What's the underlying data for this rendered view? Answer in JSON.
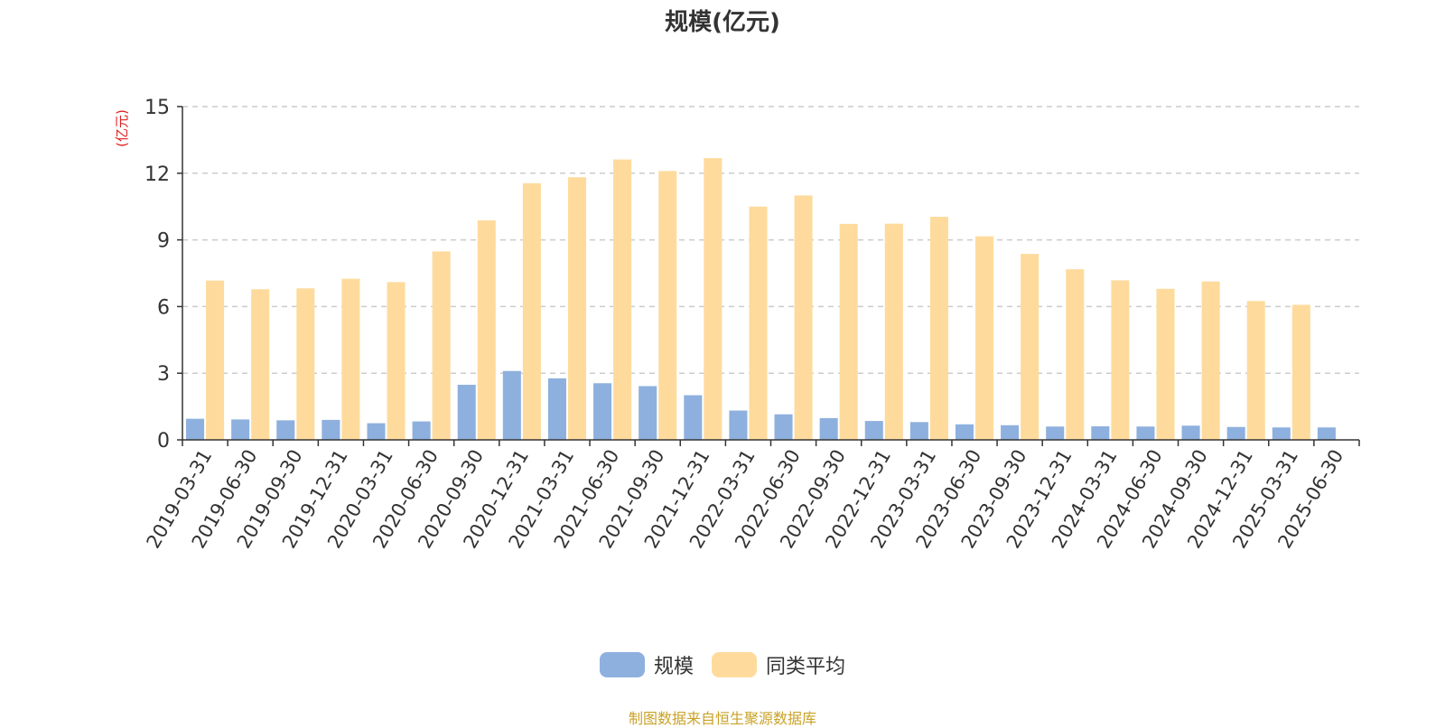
{
  "title": "规模(亿元)",
  "source": "制图数据来自恒生聚源数据库",
  "colors": {
    "series1": "#8eb0de",
    "series2": "#fedb9d",
    "unit": "#e02020",
    "grid": "#cccccc",
    "axis": "#333333"
  },
  "chart_data": {
    "type": "bar",
    "title": "规模(亿元)",
    "ylabel": "(亿元)",
    "ylim": [
      0,
      15
    ],
    "yticks": [
      0,
      3,
      6,
      9,
      12,
      15
    ],
    "grid": true,
    "legend_position": "bottom-center",
    "categories": [
      "2019-03-31",
      "2019-06-30",
      "2019-09-30",
      "2019-12-31",
      "2020-03-31",
      "2020-06-30",
      "2020-09-30",
      "2020-12-31",
      "2021-03-31",
      "2021-06-30",
      "2021-09-30",
      "2021-12-31",
      "2022-03-31",
      "2022-06-30",
      "2022-09-30",
      "2022-12-31",
      "2023-03-31",
      "2023-06-30",
      "2023-09-30",
      "2023-12-31",
      "2024-03-31",
      "2024-06-30",
      "2024-09-30",
      "2024-12-31",
      "2025-03-31",
      "2025-06-30"
    ],
    "series": [
      {
        "name": "规模",
        "values": [
          0.95,
          0.92,
          0.88,
          0.9,
          0.75,
          0.83,
          2.48,
          3.1,
          2.77,
          2.55,
          2.42,
          2.01,
          1.32,
          1.15,
          0.98,
          0.85,
          0.8,
          0.7,
          0.66,
          0.6,
          0.61,
          0.6,
          0.64,
          0.58,
          0.56,
          0.56
        ]
      },
      {
        "name": "同类平均",
        "values": [
          7.17,
          6.78,
          6.82,
          7.25,
          7.1,
          8.48,
          9.88,
          11.55,
          11.82,
          12.62,
          12.1,
          12.68,
          10.5,
          11.0,
          9.72,
          9.73,
          10.04,
          9.16,
          8.37,
          7.68,
          7.18,
          6.8,
          7.13,
          6.25,
          6.08,
          null
        ]
      }
    ]
  }
}
